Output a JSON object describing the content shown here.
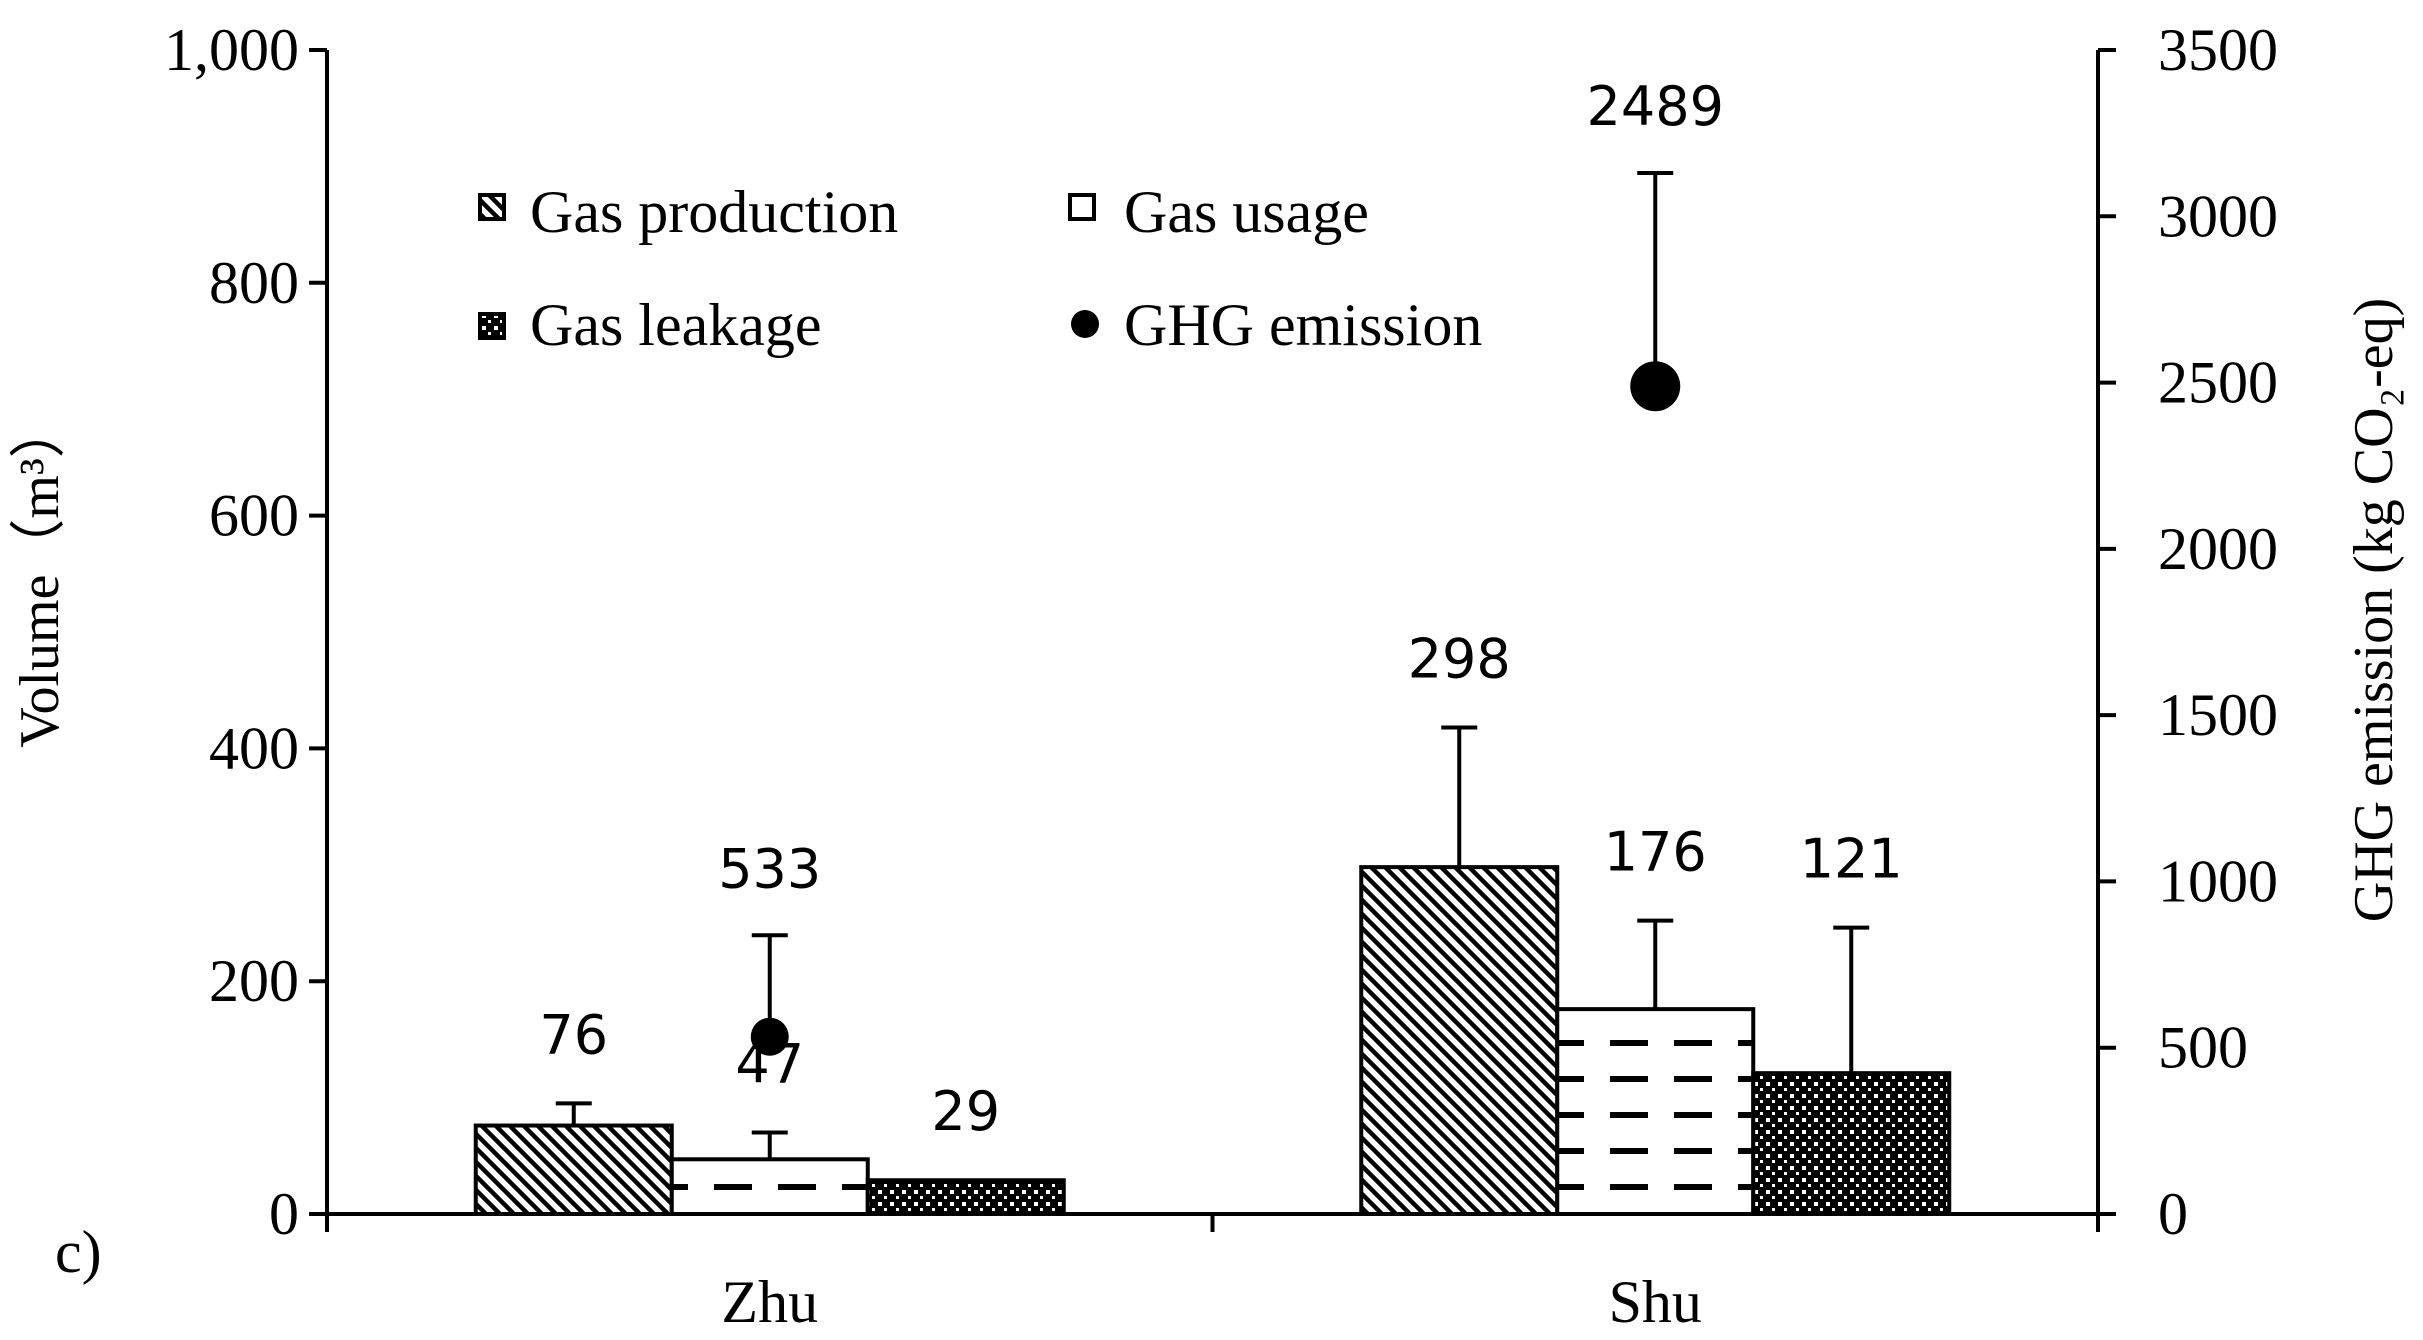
{
  "chart_data": {
    "type": "bar",
    "panel_label": "c)",
    "categories": [
      "Zhu",
      "Shu"
    ],
    "ylabel": "Volume（m³）",
    "y2label": "GHG emission (kg CO₂-eq)",
    "ylim": [
      0,
      1000
    ],
    "y2lim": [
      0,
      3500
    ],
    "yticks": [
      0,
      200,
      400,
      600,
      800,
      1000
    ],
    "ytick_labels": [
      "0",
      "200",
      "400",
      "600",
      "800",
      "1,000"
    ],
    "y2ticks": [
      0,
      500,
      1000,
      1500,
      2000,
      2500,
      3000,
      3500
    ],
    "y2tick_labels": [
      "0",
      "500",
      "1000",
      "1500",
      "2000",
      "2500",
      "3000",
      "3500"
    ],
    "grid": false,
    "legend_position": "top-left",
    "series": [
      {
        "name": "Gas production",
        "values": [
          76,
          298
        ],
        "error_upper": [
          95,
          418
        ],
        "labels": [
          "76",
          "298"
        ],
        "pattern": "diagonal",
        "axis": "left"
      },
      {
        "name": "Gas usage",
        "values": [
          47,
          176
        ],
        "error_upper": [
          70,
          252
        ],
        "labels": [
          "47",
          "176"
        ],
        "pattern": "dashes",
        "axis": "left"
      },
      {
        "name": "Gas leakage",
        "values": [
          29,
          121
        ],
        "error_upper": [
          29,
          246
        ],
        "labels": [
          "29",
          "121"
        ],
        "pattern": "checker",
        "axis": "left"
      },
      {
        "name": "GHG emission",
        "values": [
          533,
          2489
        ],
        "error_upper": [
          838,
          3130
        ],
        "labels": [
          "533",
          "2489"
        ],
        "marker": "circle",
        "axis": "right"
      }
    ]
  }
}
